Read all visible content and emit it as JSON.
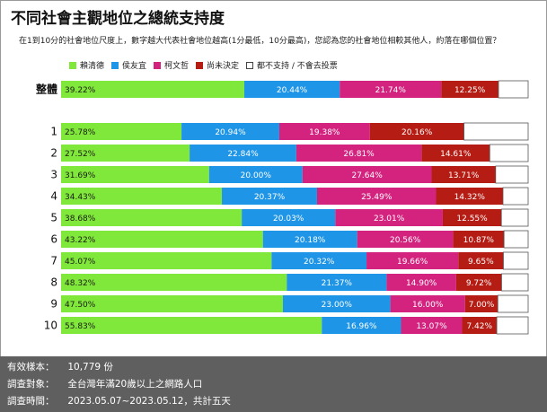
{
  "title": "不同社會主觀地位之總統支持度",
  "subtitle": "在1到10分的社會地位尺度上，數字越大代表社會地位越高(1分最低，10分最高)，您認為您的社會地位相較其他人，約落在哪個位置？",
  "legend": [
    {
      "name": "賴清德",
      "color": "#80e83a"
    },
    {
      "name": "侯友宜",
      "color": "#1e95e6"
    },
    {
      "name": "柯文哲",
      "color": "#d4237f"
    },
    {
      "name": "尚未決定",
      "color": "#b51d14"
    },
    {
      "name": "都不支持 / 不會去投票",
      "color": "#ffffff"
    }
  ],
  "chart_data": {
    "type": "bar",
    "orientation": "horizontal",
    "stacked": true,
    "categories": [
      "整體",
      "1",
      "2",
      "3",
      "4",
      "5",
      "6",
      "7",
      "8",
      "9",
      "10"
    ],
    "series": [
      {
        "name": "賴清德",
        "color": "#80e83a",
        "values": [
          39.22,
          25.78,
          27.52,
          31.69,
          34.43,
          38.68,
          43.22,
          45.07,
          48.32,
          47.5,
          55.83
        ],
        "labels": [
          "39.22%",
          "25.78%",
          "27.52%",
          "31.69%",
          "34.43%",
          "38.68%",
          "43.22%",
          "45.07%",
          "48.32%",
          "47.50%",
          "55.83%"
        ]
      },
      {
        "name": "侯友宜",
        "color": "#1e95e6",
        "values": [
          20.44,
          20.94,
          22.84,
          20.0,
          20.37,
          20.03,
          20.18,
          20.32,
          21.37,
          23.0,
          16.96
        ],
        "labels": [
          "20.44%",
          "20.94%",
          "22.84%",
          "20.00%",
          "20.37%",
          "20.03%",
          "20.18%",
          "20.32%",
          "21.37%",
          "23.00%",
          "16.96%"
        ]
      },
      {
        "name": "柯文哲",
        "color": "#d4237f",
        "values": [
          21.74,
          19.38,
          26.81,
          27.64,
          25.49,
          23.01,
          20.56,
          19.66,
          14.9,
          16.0,
          13.07
        ],
        "labels": [
          "21.74%",
          "19.38%",
          "26.81%",
          "27.64%",
          "25.49%",
          "23.01%",
          "20.56%",
          "19.66%",
          "14.90%",
          "16.00%",
          "13.07%"
        ]
      },
      {
        "name": "尚未決定",
        "color": "#b51d14",
        "values": [
          12.25,
          20.16,
          14.61,
          13.71,
          14.32,
          12.55,
          10.87,
          9.65,
          9.72,
          7.0,
          7.42
        ],
        "labels": [
          "12.25%",
          "20.16%",
          "14.61%",
          "13.71%",
          "14.32%",
          "12.55%",
          "10.87%",
          "9.65%",
          "9.72%",
          "7.00%",
          "7.42%"
        ]
      },
      {
        "name": "都不支持 / 不會去投票",
        "color": "#ffffff",
        "values": [
          6.35,
          13.74,
          8.22,
          6.96,
          5.39,
          5.73,
          5.17,
          5.3,
          5.69,
          6.5,
          6.72
        ],
        "labels": [
          "",
          "",
          "",
          "",
          "",
          "",
          "",
          "",
          "",
          "",
          ""
        ]
      }
    ],
    "xlim": [
      0,
      100
    ]
  },
  "footer": {
    "rows": [
      {
        "label": "有效樣本：",
        "value": "10,779 份"
      },
      {
        "label": "調查對象：",
        "value": "全台灣年滿20歲以上之網路人口"
      },
      {
        "label": "調查時間：",
        "value": "2023.05.07~2023.05.12，共計五天"
      }
    ]
  }
}
